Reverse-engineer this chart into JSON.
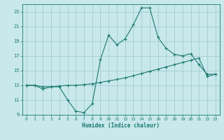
{
  "xlabel": "Humidex (Indice chaleur)",
  "x_values": [
    0,
    1,
    2,
    3,
    4,
    5,
    6,
    7,
    8,
    9,
    10,
    11,
    12,
    13,
    14,
    15,
    16,
    17,
    18,
    19,
    20,
    21,
    22,
    23
  ],
  "line1_y": [
    13,
    13,
    12.5,
    12.8,
    12.8,
    11,
    9.5,
    9.3,
    10.5,
    16.5,
    19.8,
    18.5,
    19.3,
    21.2,
    23.5,
    23.5,
    19.5,
    18,
    17.2,
    17,
    17.3,
    15.8,
    14.5,
    14.5
  ],
  "line2_y": [
    13,
    13,
    12.8,
    12.8,
    12.9,
    13.0,
    13.0,
    13.1,
    13.2,
    13.4,
    13.6,
    13.8,
    14.0,
    14.3,
    14.6,
    14.9,
    15.2,
    15.5,
    15.8,
    16.1,
    16.4,
    16.7,
    14.2,
    14.5
  ],
  "line_color": "#1a7a6e",
  "bg_color": "#c8e8ec",
  "grid_color": "#9ec8cc",
  "ylim": [
    9,
    24
  ],
  "xlim": [
    -0.5,
    23.5
  ],
  "yticks": [
    9,
    11,
    13,
    15,
    17,
    19,
    21,
    23
  ],
  "xticks": [
    0,
    1,
    2,
    3,
    4,
    5,
    6,
    7,
    8,
    9,
    10,
    11,
    12,
    13,
    14,
    15,
    16,
    17,
    18,
    19,
    20,
    21,
    22,
    23
  ]
}
